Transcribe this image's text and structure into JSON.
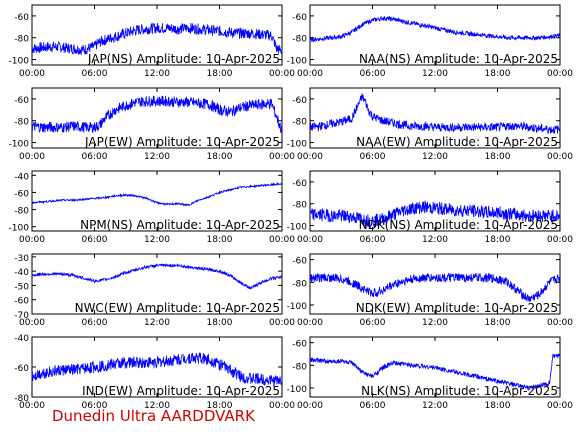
{
  "footer": "Dunedin Ultra AARDDVARK",
  "colors": {
    "line": "#0000ff",
    "axis": "#000000",
    "footer": "#d40000"
  },
  "x_tick_labels": [
    "00:00",
    "06:00",
    "12:00",
    "18:00",
    "00:00"
  ],
  "chart_data": [
    {
      "type": "line",
      "title": "JAP(NS) Amplitude: 10-Apr-2025",
      "xlim": [
        0,
        24
      ],
      "ylim": [
        -105,
        -50
      ],
      "yticks": [
        -60,
        -80,
        -100
      ],
      "yticklabels": [
        "-60",
        "-80",
        "-100"
      ],
      "grid": false,
      "series": [
        {
          "x": [
            0,
            1,
            2,
            3,
            4,
            5,
            6,
            6.5,
            7,
            8,
            9,
            10,
            11,
            12,
            13,
            14,
            15,
            16,
            17,
            18,
            19,
            20,
            21,
            22,
            23,
            23.5,
            24
          ],
          "y": [
            -90,
            -89,
            -88,
            -89,
            -90,
            -91,
            -88,
            -84,
            -82,
            -79,
            -76,
            -73,
            -72,
            -71,
            -71,
            -72,
            -71,
            -72,
            -73,
            -74,
            -75,
            -76,
            -76,
            -77,
            -78,
            -90,
            -92
          ],
          "band": 5
        }
      ]
    },
    {
      "type": "line",
      "title": "NAA(NS) Amplitude: 10-Apr-2025",
      "xlim": [
        0,
        24
      ],
      "ylim": [
        -105,
        -50
      ],
      "yticks": [
        -60,
        -80,
        -100
      ],
      "yticklabels": [
        "-60",
        "-80",
        "-100"
      ],
      "grid": false,
      "series": [
        {
          "x": [
            0,
            1,
            2,
            3,
            4,
            5,
            6,
            7,
            8,
            9,
            10,
            11,
            12,
            13,
            14,
            15,
            16,
            17,
            18,
            19,
            20,
            21,
            22,
            23,
            24
          ],
          "y": [
            -82,
            -81,
            -80,
            -79,
            -75,
            -68,
            -64,
            -62,
            -63,
            -65,
            -67,
            -69,
            -71,
            -73,
            -75,
            -76,
            -77,
            -78,
            -79,
            -80,
            -80,
            -80,
            -80,
            -79,
            -78
          ],
          "band": 2
        }
      ]
    },
    {
      "type": "line",
      "title": "JAP(EW) Amplitude: 10-Apr-2025",
      "xlim": [
        0,
        24
      ],
      "ylim": [
        -105,
        -50
      ],
      "yticks": [
        -60,
        -80,
        -100
      ],
      "yticklabels": [
        "-60",
        "-80",
        "-100"
      ],
      "grid": false,
      "series": [
        {
          "x": [
            0,
            1,
            2,
            3,
            4,
            5,
            6,
            6.5,
            7,
            8,
            9,
            10,
            11,
            12,
            13,
            14,
            15,
            16,
            17,
            18,
            19,
            20,
            21,
            22,
            23,
            24
          ],
          "y": [
            -85,
            -86,
            -86,
            -86,
            -85,
            -86,
            -86,
            -84,
            -78,
            -70,
            -66,
            -63,
            -62,
            -62,
            -62,
            -63,
            -63,
            -64,
            -65,
            -70,
            -72,
            -68,
            -66,
            -65,
            -64,
            -90
          ],
          "band": 5
        }
      ]
    },
    {
      "type": "line",
      "title": "NAA(EW) Amplitude: 10-Apr-2025",
      "xlim": [
        0,
        24
      ],
      "ylim": [
        -105,
        -50
      ],
      "yticks": [
        -60,
        -80,
        -100
      ],
      "yticklabels": [
        "-60",
        "-80",
        "-100"
      ],
      "grid": false,
      "series": [
        {
          "x": [
            0,
            1,
            2,
            3,
            4,
            4.5,
            5,
            5.3,
            5.6,
            6,
            7,
            8,
            9,
            10,
            11,
            12,
            13,
            14,
            15,
            16,
            17,
            18,
            19,
            20,
            21,
            22,
            23,
            24
          ],
          "y": [
            -86,
            -85,
            -83,
            -81,
            -78,
            -68,
            -58,
            -62,
            -70,
            -76,
            -80,
            -82,
            -84,
            -85,
            -85,
            -86,
            -86,
            -86,
            -86,
            -86,
            -86,
            -86,
            -85,
            -85,
            -86,
            -87,
            -88,
            -88
          ],
          "band": 4
        }
      ]
    },
    {
      "type": "line",
      "title": "NPM(NS) Amplitude: 10-Apr-2025",
      "xlim": [
        0,
        24
      ],
      "ylim": [
        -105,
        -35
      ],
      "yticks": [
        -40,
        -60,
        -80,
        -100
      ],
      "yticklabels": [
        "-40",
        "-60",
        "-80",
        "-100"
      ],
      "grid": false,
      "series": [
        {
          "x": [
            0,
            1,
            2,
            3,
            4,
            5,
            6,
            7,
            8,
            9,
            10,
            11,
            12,
            13,
            14,
            15,
            16,
            17,
            18,
            19,
            20,
            21,
            22,
            23,
            24
          ],
          "y": [
            -72,
            -71,
            -70,
            -69,
            -69,
            -68,
            -67,
            -66,
            -64,
            -63,
            -64,
            -67,
            -72,
            -74,
            -73,
            -75,
            -69,
            -65,
            -60,
            -57,
            -54,
            -53,
            -52,
            -51,
            -50
          ],
          "band": 1
        }
      ]
    },
    {
      "type": "line",
      "title": "NDK(NS) Amplitude: 10-Apr-2025",
      "xlim": [
        0,
        24
      ],
      "ylim": [
        -105,
        -50
      ],
      "yticks": [
        -60,
        -80,
        -100
      ],
      "yticklabels": [
        "-60",
        "-80",
        "-100"
      ],
      "grid": false,
      "series": [
        {
          "x": [
            0,
            1,
            2,
            3,
            4,
            5,
            6,
            7,
            8,
            9,
            10,
            11,
            12,
            13,
            14,
            15,
            16,
            17,
            18,
            19,
            20,
            21,
            22,
            23,
            24
          ],
          "y": [
            -90,
            -90,
            -91,
            -91,
            -92,
            -94,
            -96,
            -94,
            -90,
            -86,
            -84,
            -83,
            -84,
            -85,
            -86,
            -86,
            -87,
            -88,
            -88,
            -89,
            -90,
            -91,
            -91,
            -91,
            -91
          ],
          "band": 6
        }
      ]
    },
    {
      "type": "line",
      "title": "NWC(EW) Amplitude: 10-Apr-2025",
      "xlim": [
        0,
        24
      ],
      "ylim": [
        -70,
        -28
      ],
      "yticks": [
        -30,
        -40,
        -50,
        -60,
        -70
      ],
      "yticklabels": [
        "-30",
        "-40",
        "-50",
        "-60",
        "-70"
      ],
      "grid": false,
      "series": [
        {
          "x": [
            0,
            1,
            2,
            3,
            4,
            5,
            6,
            7,
            8,
            9,
            10,
            11,
            12,
            13,
            14,
            15,
            16,
            17,
            18,
            19,
            20,
            21,
            22,
            23,
            24
          ],
          "y": [
            -43,
            -42,
            -42,
            -42,
            -43,
            -45,
            -47,
            -46,
            -44,
            -41,
            -39,
            -37,
            -36,
            -36,
            -36,
            -37,
            -38,
            -39,
            -40,
            -43,
            -48,
            -52,
            -48,
            -45,
            -44
          ],
          "band": 1
        }
      ]
    },
    {
      "type": "line",
      "title": "NDK(EW) Amplitude: 10-Apr-2025",
      "xlim": [
        0,
        24
      ],
      "ylim": [
        -108,
        -55
      ],
      "yticks": [
        -60,
        -80,
        -100
      ],
      "yticklabels": [
        "-60",
        "-80",
        "-100"
      ],
      "grid": false,
      "series": [
        {
          "x": [
            0,
            1,
            2,
            3,
            4,
            5,
            6,
            7,
            8,
            9,
            10,
            11,
            12,
            13,
            14,
            15,
            16,
            17,
            18,
            19,
            20,
            21,
            22,
            23,
            24
          ],
          "y": [
            -76,
            -76,
            -76,
            -77,
            -80,
            -85,
            -90,
            -87,
            -82,
            -79,
            -77,
            -76,
            -76,
            -76,
            -76,
            -76,
            -76,
            -76,
            -77,
            -80,
            -88,
            -95,
            -91,
            -80,
            -76
          ],
          "band": 4
        }
      ]
    },
    {
      "type": "line",
      "title": "IND(EW) Amplitude: 10-Apr-2025",
      "xlim": [
        0,
        24
      ],
      "ylim": [
        -80,
        -40
      ],
      "yticks": [
        -40,
        -60,
        -80
      ],
      "yticklabels": [
        "-40",
        "-60",
        "-80"
      ],
      "grid": false,
      "series": [
        {
          "x": [
            0,
            1,
            2,
            3,
            4,
            5,
            6,
            7,
            8,
            9,
            10,
            11,
            12,
            13,
            14,
            15,
            16,
            17,
            18,
            19,
            20,
            21,
            22,
            23,
            24
          ],
          "y": [
            -66,
            -64,
            -63,
            -62,
            -62,
            -61,
            -60,
            -59,
            -58,
            -57,
            -57,
            -57,
            -57,
            -56,
            -55,
            -54,
            -54,
            -55,
            -58,
            -62,
            -66,
            -68,
            -68,
            -69,
            -69
          ],
          "band": 4
        }
      ]
    },
    {
      "type": "line",
      "title": "NLK(NS) Amplitude: 10-Apr-2025",
      "xlim": [
        0,
        24
      ],
      "ylim": [
        -108,
        -55
      ],
      "yticks": [
        -60,
        -80,
        -100
      ],
      "yticklabels": [
        "-60",
        "-80",
        "-100"
      ],
      "grid": false,
      "series": [
        {
          "x": [
            0,
            1,
            2,
            3,
            4,
            5,
            6,
            7,
            8,
            9,
            10,
            11,
            12,
            13,
            14,
            15,
            16,
            17,
            18,
            19,
            20,
            21,
            22,
            23,
            23.3,
            24
          ],
          "y": [
            -75,
            -76,
            -77,
            -76,
            -78,
            -86,
            -90,
            -82,
            -78,
            -79,
            -80,
            -81,
            -82,
            -84,
            -86,
            -88,
            -90,
            -92,
            -94,
            -96,
            -98,
            -100,
            -98,
            -96,
            -72,
            -72
          ],
          "band": 2
        }
      ]
    }
  ]
}
